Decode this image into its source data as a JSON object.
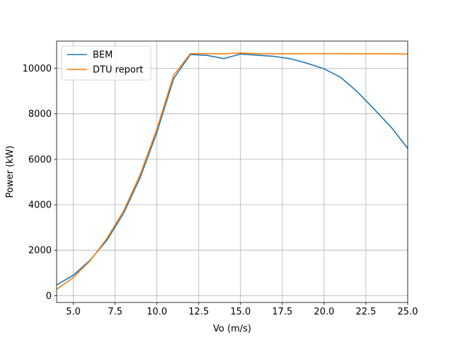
{
  "chart_data": {
    "type": "line",
    "xlabel": "Vo (m/s)",
    "ylabel": "Power (kW)",
    "xlim": [
      4,
      25
    ],
    "ylim": [
      -300,
      11200
    ],
    "xticks": [
      5.0,
      7.5,
      10.0,
      12.5,
      15.0,
      17.5,
      20.0,
      22.5,
      25.0
    ],
    "xtick_labels": [
      "5.0",
      "7.5",
      "10.0",
      "12.5",
      "15.0",
      "17.5",
      "20.0",
      "22.5",
      "25.0"
    ],
    "yticks": [
      0,
      2000,
      4000,
      6000,
      8000,
      10000
    ],
    "ytick_labels": [
      "0",
      "2000",
      "4000",
      "6000",
      "8000",
      "10000"
    ],
    "grid": true,
    "legend_position": "top-left",
    "series": [
      {
        "name": "BEM",
        "color": "#1f77b4",
        "x": [
          4,
          5,
          6,
          7,
          8,
          9,
          10,
          11,
          12,
          13,
          14,
          15,
          16,
          17,
          18,
          19,
          20,
          21,
          22,
          23,
          24,
          25
        ],
        "y": [
          470,
          900,
          1560,
          2430,
          3620,
          5200,
          7190,
          9550,
          10610,
          10570,
          10430,
          10630,
          10580,
          10530,
          10420,
          10220,
          9980,
          9600,
          8960,
          8200,
          7420,
          6480
        ]
      },
      {
        "name": "DTU report",
        "color": "#ff7f0e",
        "x": [
          4,
          5,
          6,
          7,
          8,
          9,
          10,
          11,
          12,
          13,
          14,
          15,
          16,
          17,
          18,
          19,
          20,
          21,
          22,
          23,
          24,
          25
        ],
        "y": [
          280,
          800,
          1530,
          2510,
          3720,
          5330,
          7340,
          9700,
          10650,
          10650,
          10640,
          10680,
          10640,
          10640,
          10640,
          10650,
          10650,
          10650,
          10640,
          10640,
          10640,
          10630
        ]
      }
    ]
  }
}
